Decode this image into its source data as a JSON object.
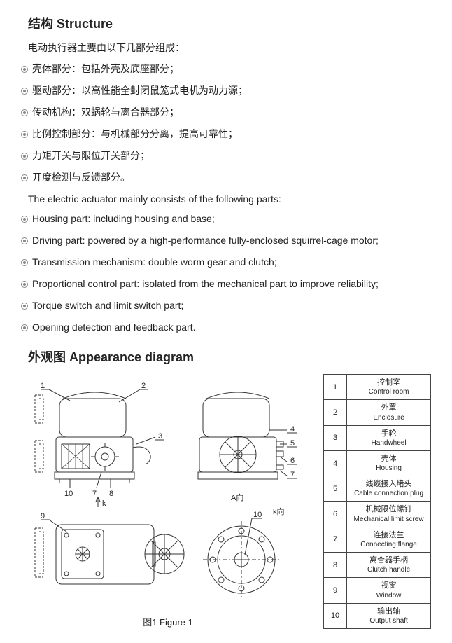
{
  "structure": {
    "heading": "结构 Structure",
    "intro_cn": "电动执行器主要由以下几部分组成：",
    "bullets_cn": [
      "壳体部分：包括外壳及底座部分；",
      "驱动部分：以高性能全封闭鼠笼式电机为动力源；",
      "传动机构：双蜗轮与离合器部分；",
      "比例控制部分：与机械部分分离，提高可靠性；",
      "力矩开关与限位开关部分；",
      "开度检测与反馈部分。"
    ],
    "intro_en": "The electric actuator mainly consists of the following parts:",
    "bullets_en": [
      "Housing part: including housing and base;",
      "Driving part: powered by a high-performance fully-enclosed squirrel-cage motor;",
      "Transmission mechanism: double worm gear and clutch;",
      "Proportional control part: isolated from the mechanical part to improve reliability;",
      "Torque switch and limit switch part;",
      "Opening detection and feedback part."
    ]
  },
  "appearance": {
    "heading": "外观图 Appearance diagram",
    "figure_caption": "图1 Figure 1",
    "diagram_labels": {
      "top_left": [
        "1",
        "2",
        "3",
        "4",
        "5",
        "6",
        "7",
        "8",
        "9",
        "10"
      ],
      "arrow_k": "k",
      "a_direction": "A向",
      "k_direction": "k向"
    },
    "diagram_style": {
      "stroke": "#333333",
      "stroke_width": 1,
      "dash": "3,2",
      "label_fontsize": 11,
      "background": "#ffffff"
    },
    "parts": [
      {
        "num": "1",
        "cn": "控制室",
        "en": "Control room"
      },
      {
        "num": "2",
        "cn": "外罩",
        "en": "Enclosure"
      },
      {
        "num": "3",
        "cn": "手轮",
        "en": "Handwheel"
      },
      {
        "num": "4",
        "cn": "壳体",
        "en": "Housing"
      },
      {
        "num": "5",
        "cn": "线缆接入堵头",
        "en": "Cable connection plug"
      },
      {
        "num": "6",
        "cn": "机械限位螺钉",
        "en": "Mechanical limit screw"
      },
      {
        "num": "7",
        "cn": "连接法兰",
        "en": "Connecting flange"
      },
      {
        "num": "8",
        "cn": "离合器手柄",
        "en": "Clutch handle"
      },
      {
        "num": "9",
        "cn": "视窗",
        "en": "Window"
      },
      {
        "num": "10",
        "cn": "输出轴",
        "en": "Output shaft"
      }
    ]
  }
}
